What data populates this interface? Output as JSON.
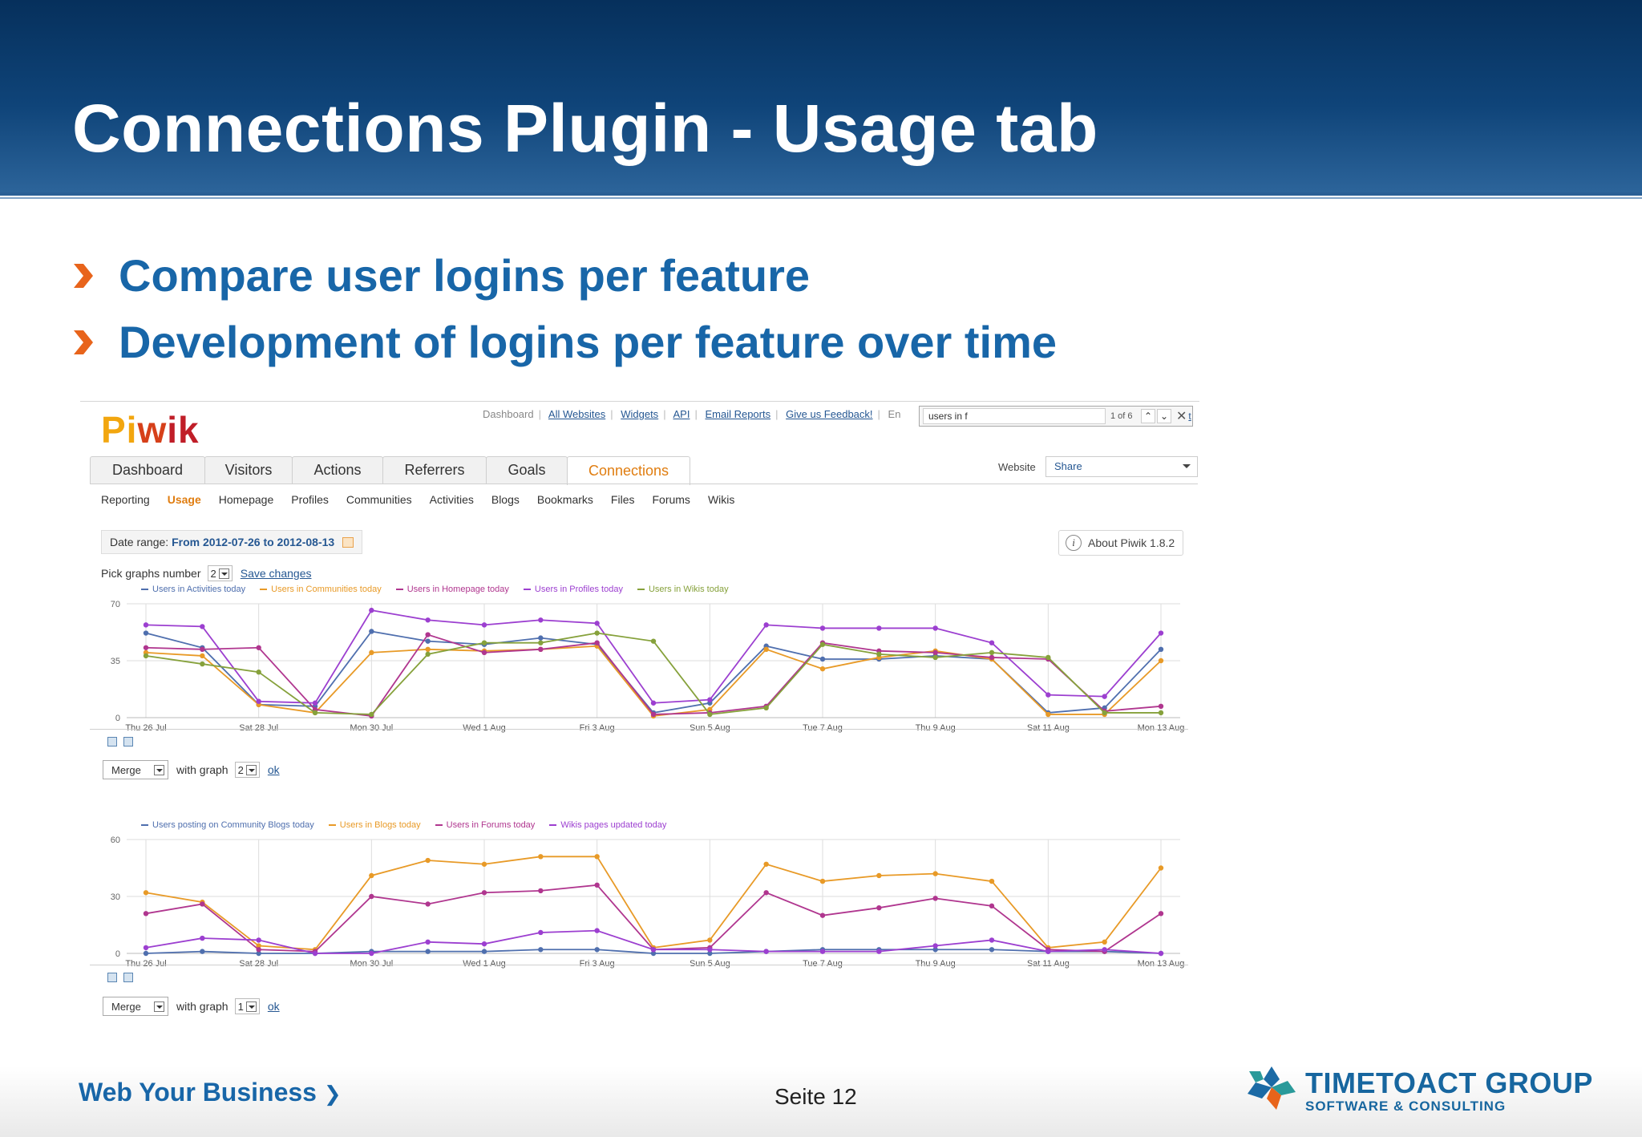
{
  "slide": {
    "title": "Connections Plugin - Usage tab",
    "bullets": [
      "Compare user logins per feature",
      "Development of logins per feature over time"
    ]
  },
  "piwik": {
    "logo": "Piwik",
    "toplinks": {
      "dashboard": "Dashboard",
      "all_websites": "All Websites",
      "widgets": "Widgets",
      "api": "API",
      "email_reports": "Email Reports",
      "feedback": "Give us Feedback!",
      "en": "En",
      "tail": "t"
    },
    "find": {
      "value": "users in f",
      "count": "1 of 6",
      "prev": "^",
      "next": "v",
      "close": "✕"
    },
    "tabs": [
      "Dashboard",
      "Visitors",
      "Actions",
      "Referrers",
      "Goals",
      "Connections"
    ],
    "website_label": "Website",
    "website_value": "Share",
    "subtabs": [
      "Reporting",
      "Usage",
      "Homepage",
      "Profiles",
      "Communities",
      "Activities",
      "Blogs",
      "Bookmarks",
      "Files",
      "Forums",
      "Wikis"
    ],
    "date_range_label": "Date range:",
    "date_range_value": "From 2012-07-26 to 2012-08-13",
    "about": "About Piwik 1.8.2",
    "pick_label": "Pick graphs number",
    "pick_value": "2",
    "save_changes": "Save changes",
    "merge1": {
      "label": "Merge",
      "with_graph": "with graph",
      "graph_value": "2",
      "ok": "ok"
    },
    "merge2": {
      "label": "Merge",
      "with_graph": "with graph",
      "graph_value": "1",
      "ok": "ok"
    }
  },
  "chart_data": [
    {
      "type": "line",
      "x": [
        "Thu 26 Jul",
        "Fri 27 Jul",
        "Sat 28 Jul",
        "Sun 29 Jul",
        "Mon 30 Jul",
        "Tue 31 Jul",
        "Wed 1 Aug",
        "Thu 2 Aug",
        "Fri 3 Aug",
        "Sat 4 Aug",
        "Sun 5 Aug",
        "Mon 6 Aug",
        "Tue 7 Aug",
        "Wed 8 Aug",
        "Thu 9 Aug",
        "Fri 10 Aug",
        "Sat 11 Aug",
        "Sun 12 Aug",
        "Mon 13 Aug"
      ],
      "xticks": [
        "Thu 26 Jul",
        "Sat 28 Jul",
        "Mon 30 Jul",
        "Wed 1 Aug",
        "Fri 3 Aug",
        "Sun 5 Aug",
        "Tue 7 Aug",
        "Thu 9 Aug",
        "Sat 11 Aug",
        "Mon 13 Aug"
      ],
      "yticks": [
        0,
        35,
        70
      ],
      "ylim": [
        0,
        70
      ],
      "grid": true,
      "legend_position": "top-left",
      "series": [
        {
          "name": "Users in Activities today",
          "color": "#4f6fae",
          "values": [
            52,
            43,
            8,
            7,
            53,
            47,
            45,
            49,
            45,
            3,
            9,
            44,
            36,
            36,
            38,
            36,
            3,
            6,
            42
          ]
        },
        {
          "name": "Users in Communities today",
          "color": "#e89a27",
          "values": [
            40,
            38,
            8,
            3,
            40,
            42,
            41,
            42,
            44,
            1,
            5,
            42,
            30,
            37,
            41,
            36,
            2,
            2,
            35
          ]
        },
        {
          "name": "Users in Homepage today",
          "color": "#b0368f",
          "values": [
            43,
            42,
            43,
            5,
            1,
            51,
            40,
            42,
            46,
            2,
            3,
            7,
            46,
            41,
            40,
            37,
            36,
            4,
            7
          ]
        },
        {
          "name": "Users in Profiles today",
          "color": "#9c3fd0",
          "values": [
            57,
            56,
            10,
            9,
            66,
            60,
            57,
            60,
            58,
            9,
            11,
            57,
            55,
            55,
            55,
            46,
            14,
            13,
            52
          ]
        },
        {
          "name": "Users in Wikis today",
          "color": "#86a13b",
          "values": [
            38,
            33,
            28,
            3,
            2,
            39,
            46,
            46,
            52,
            47,
            2,
            6,
            45,
            39,
            37,
            40,
            37,
            3,
            3
          ]
        }
      ]
    },
    {
      "type": "line",
      "x": [
        "Thu 26 Jul",
        "Fri 27 Jul",
        "Sat 28 Jul",
        "Sun 29 Jul",
        "Mon 30 Jul",
        "Tue 31 Jul",
        "Wed 1 Aug",
        "Thu 2 Aug",
        "Fri 3 Aug",
        "Sat 4 Aug",
        "Sun 5 Aug",
        "Mon 6 Aug",
        "Tue 7 Aug",
        "Wed 8 Aug",
        "Thu 9 Aug",
        "Fri 10 Aug",
        "Sat 11 Aug",
        "Sun 12 Aug",
        "Mon 13 Aug"
      ],
      "xticks": [
        "Thu 26 Jul",
        "Sat 28 Jul",
        "Mon 30 Jul",
        "Wed 1 Aug",
        "Fri 3 Aug",
        "Sun 5 Aug",
        "Tue 7 Aug",
        "Thu 9 Aug",
        "Sat 11 Aug",
        "Mon 13 Aug"
      ],
      "yticks": [
        0,
        30,
        60
      ],
      "ylim": [
        0,
        60
      ],
      "grid": true,
      "legend_position": "top-left",
      "series": [
        {
          "name": "Users posting on Community Blogs today",
          "color": "#4f6fae",
          "values": [
            0,
            1,
            0,
            0,
            1,
            1,
            1,
            2,
            2,
            0,
            0,
            1,
            2,
            2,
            2,
            2,
            1,
            1,
            0
          ]
        },
        {
          "name": "Users in Blogs today",
          "color": "#e89a27",
          "values": [
            32,
            27,
            4,
            2,
            41,
            49,
            47,
            51,
            51,
            3,
            7,
            47,
            38,
            41,
            42,
            38,
            3,
            6,
            45
          ]
        },
        {
          "name": "Users in Forums today",
          "color": "#b0368f",
          "values": [
            21,
            26,
            2,
            1,
            30,
            26,
            32,
            33,
            36,
            2,
            3,
            32,
            20,
            24,
            29,
            25,
            2,
            1,
            21
          ]
        },
        {
          "name": "Wikis pages updated today",
          "color": "#9c3fd0",
          "values": [
            3,
            8,
            7,
            0,
            0,
            6,
            5,
            11,
            12,
            2,
            2,
            1,
            1,
            1,
            4,
            7,
            1,
            2,
            0
          ]
        }
      ]
    }
  ],
  "footer": {
    "tagline": "Web Your Business",
    "page": "Seite 12",
    "company": "TIMETOACT GROUP",
    "company_sub": "SOFTWARE & CONSULTING"
  },
  "colors": {
    "header_blue": "#0f4479",
    "bullet_blue": "#1866a8",
    "bullet_orange": "#e8641b",
    "piwik_active": "#e07d10"
  }
}
